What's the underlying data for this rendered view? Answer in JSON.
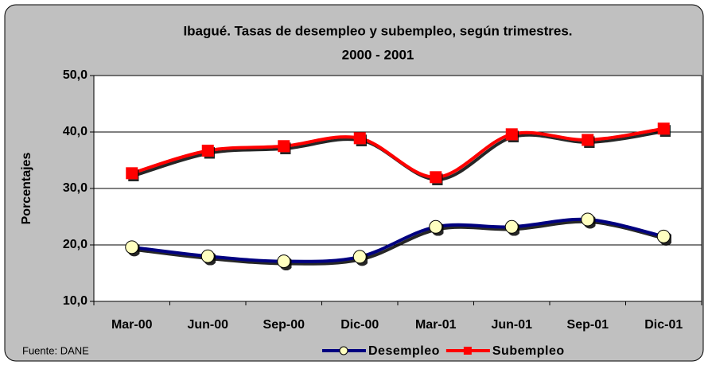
{
  "chart_data": {
    "type": "line",
    "title": "Ibagué. Tasas de desempleo y subempleo, según trimestres.",
    "subtitle": "2000 - 2001",
    "y_label": "Porcentajes",
    "note": "Fuente: DANE",
    "categories": [
      "Mar-00",
      "Jun-00",
      "Sep-00",
      "Dic-00",
      "Mar-01",
      "Jun-01",
      "Sep-01",
      "Dic-01"
    ],
    "series": [
      {
        "name": "Desempleo",
        "color": "#000080",
        "marker": "circle",
        "marker_color": "#ffffc0",
        "values": [
          19.6,
          18.0,
          17.1,
          17.9,
          23.2,
          23.2,
          24.5,
          21.5
        ]
      },
      {
        "name": "Subempleo",
        "color": "#ff0000",
        "marker": "square",
        "marker_color": "#ff0000",
        "values": [
          32.7,
          36.7,
          37.5,
          38.9,
          32.0,
          39.6,
          38.6,
          40.6
        ]
      }
    ],
    "ylim": [
      10,
      50
    ],
    "yticks": [
      {
        "value": 10,
        "label": "10,0"
      },
      {
        "value": 20,
        "label": "20,0"
      },
      {
        "value": 30,
        "label": "30,0"
      },
      {
        "value": 40,
        "label": "40,0"
      },
      {
        "value": 50,
        "label": "50,0"
      }
    ],
    "grid": true,
    "smooth": true,
    "legend": "bottom"
  }
}
